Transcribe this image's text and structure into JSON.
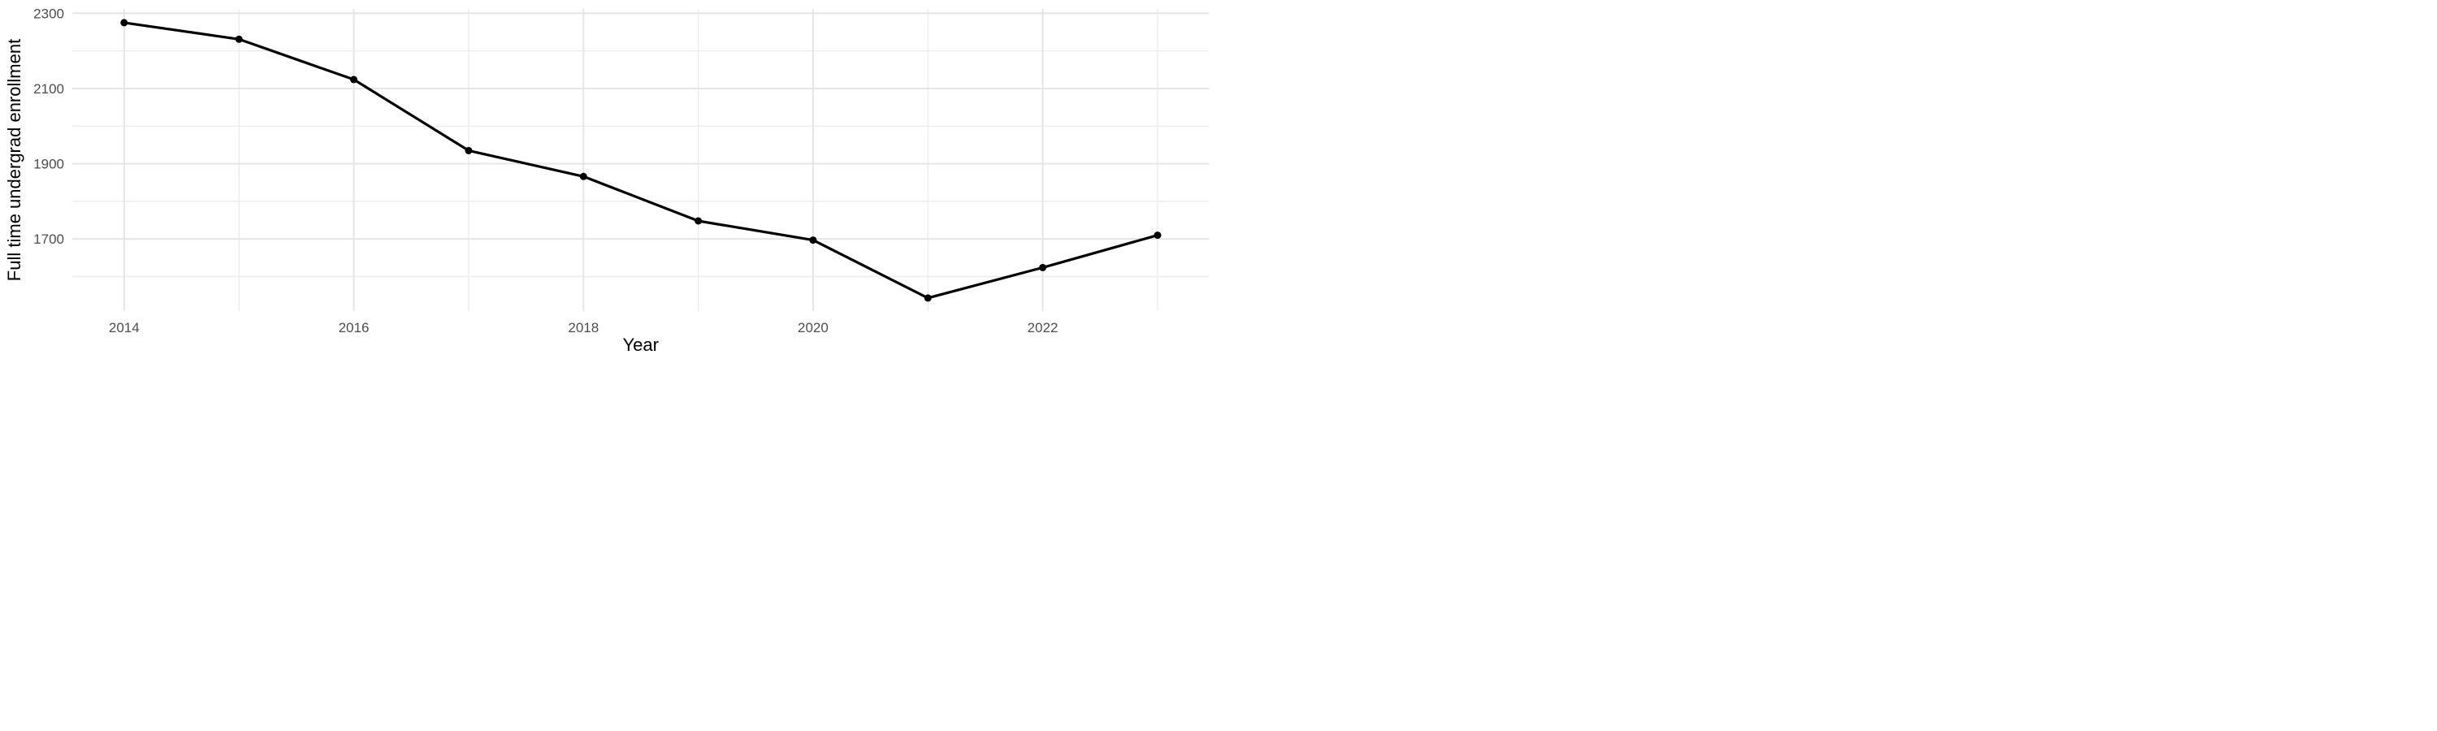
{
  "chart_data": {
    "type": "line",
    "title": "",
    "xlabel": "Year",
    "ylabel": "Full time undergrad enrollment",
    "series": [
      {
        "name": "Full time undergrad enrollment",
        "x": [
          2014,
          2015,
          2016,
          2017,
          2018,
          2019,
          2020,
          2021,
          2022,
          2023
        ],
        "values": [
          2275,
          2231,
          2124,
          1935,
          1866,
          1748,
          1697,
          1543,
          1624,
          1710
        ]
      }
    ],
    "x_major_ticks": [
      2014,
      2016,
      2018,
      2020,
      2022
    ],
    "x_tick_labels": [
      "2014",
      "2016",
      "2018",
      "2020",
      "2022"
    ],
    "x_minor_gridlines": [
      2015,
      2017,
      2019,
      2021,
      2023
    ],
    "y_major_ticks": [
      2300,
      2100,
      1900,
      1700
    ],
    "y_tick_labels": [
      "2300",
      "2100",
      "1900",
      "1700"
    ],
    "y_minor_gridlines": [
      2200,
      2000,
      1800,
      1600
    ],
    "xlim": [
      2013.55,
      2023.45
    ],
    "ylim": [
      1506,
      2313
    ],
    "grid": "major and minor gridlines, no axis lines, no tick marks",
    "legend_position": "none",
    "marker": "filled-circle",
    "colors": {
      "line": "#000000",
      "point": "#000000",
      "grid_major": "#E6E6E6",
      "grid_minor": "#EDEDED",
      "tick_label": "#4D4D4D",
      "axis_title": "#000000",
      "background": "#FFFFFF"
    }
  }
}
